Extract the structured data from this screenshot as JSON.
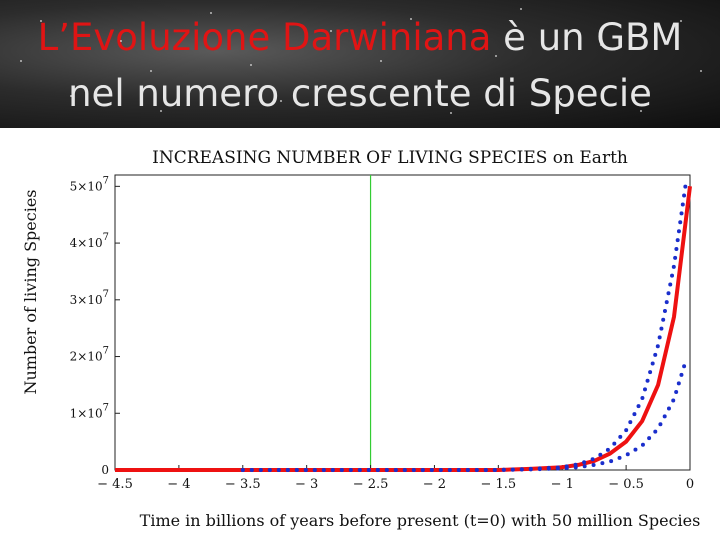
{
  "slide": {
    "title_line1_highlight": "L’Evoluzione Darwiniana",
    "title_line1_rest": " è un GBM",
    "title_line2": "nel numero crescente di Specie",
    "colors": {
      "title_highlight": "#e01414",
      "title_text": "#e6e6e6"
    }
  },
  "chart_data": {
    "type": "line",
    "title": "INCREASING NUMBER OF LIVING SPECIES on Earth",
    "xlabel": "Time in billions of years before present (t=0) with 50 million Species",
    "ylabel": "Number of living Species",
    "xlim": [
      -4.5,
      0
    ],
    "ylim": [
      0,
      52000000
    ],
    "x_ticks": [
      -4.5,
      -4,
      -3.5,
      -3,
      -2.5,
      -2,
      -1.5,
      -1,
      -0.5,
      0
    ],
    "x_tick_labels": [
      "− 4.5",
      "− 4",
      "− 3.5",
      "− 3",
      "− 2.5",
      "− 2",
      "− 1.5",
      "− 1",
      "− 0.5",
      "0"
    ],
    "y_ticks": [
      {
        "value": 0,
        "mant": "0",
        "exp": ""
      },
      {
        "value": 10000000,
        "mant": "1×10",
        "exp": "7"
      },
      {
        "value": 20000000,
        "mant": "2×10",
        "exp": "7"
      },
      {
        "value": 30000000,
        "mant": "3×10",
        "exp": "7"
      },
      {
        "value": 40000000,
        "mant": "4×10",
        "exp": "7"
      },
      {
        "value": 50000000,
        "mant": "5×10",
        "exp": "7"
      }
    ],
    "vertical_marker": {
      "x": -2.5,
      "color": "#33cc33"
    },
    "series": [
      {
        "style": "solid",
        "color": "#ee1111",
        "x": [
          -4.5,
          -3.0,
          -2.0,
          -1.5,
          -1.25,
          -1.0,
          -0.875,
          -0.75,
          -0.625,
          -0.5,
          -0.375,
          -0.25,
          -0.125,
          0
        ],
        "y": [
          0,
          0,
          0,
          0,
          200000,
          500000,
          900000,
          1600000,
          2900000,
          5000000,
          8600000,
          15000000,
          27000000,
          50000000
        ]
      },
      {
        "style": "dotted",
        "color": "#1a2ecc",
        "x": [
          -3.5,
          -2.0,
          -1.5,
          -1.25,
          -1.0,
          -0.875,
          -0.75,
          -0.625,
          -0.5,
          -0.375,
          -0.25,
          -0.125,
          -0.03
        ],
        "y": [
          0,
          0,
          0,
          200000,
          500000,
          1000000,
          2000000,
          3800000,
          7000000,
          12500000,
          22000000,
          36000000,
          51000000
        ]
      },
      {
        "style": "dotted",
        "color": "#1a2ecc",
        "x": [
          -3.5,
          -2.0,
          -1.5,
          -1.25,
          -1.0,
          -0.875,
          -0.75,
          -0.625,
          -0.5,
          -0.375,
          -0.25,
          -0.125,
          -0.03
        ],
        "y": [
          0,
          0,
          0,
          100000,
          300000,
          500000,
          900000,
          1500000,
          2600000,
          4300000,
          7300000,
          12500000,
          19500000
        ]
      }
    ]
  }
}
